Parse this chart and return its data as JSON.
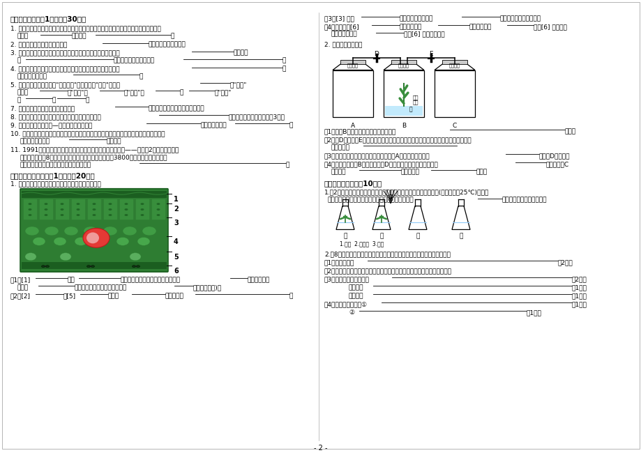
{
  "page_bg": "#ffffff",
  "text_color": "#000000",
  "page_number": "- 2 -",
  "section2_title": "二、填空题（每空1分，共计30分）",
  "section3_title": "三、识图分析题（每空1分，共计20分）",
  "section4_title": "四、探究与创新（共10分）"
}
